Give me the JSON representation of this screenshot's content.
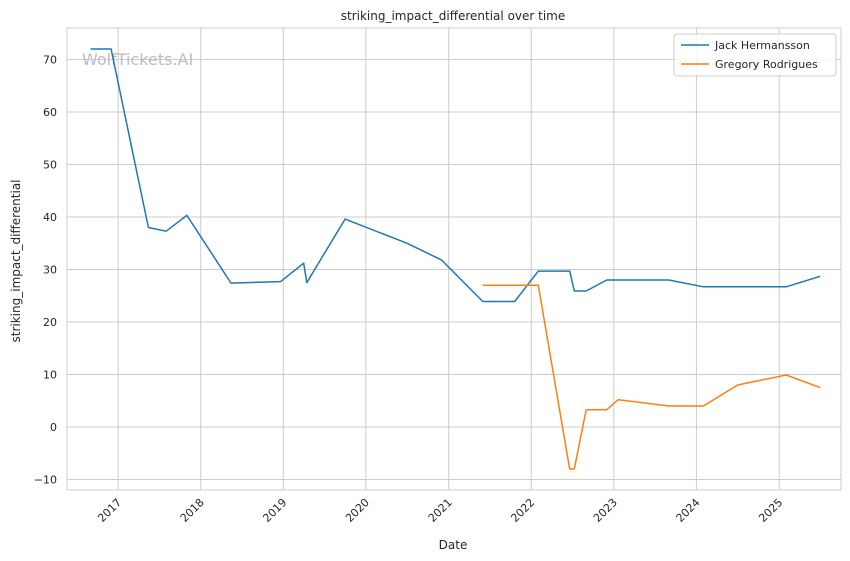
{
  "chart_data": {
    "type": "line",
    "title": "striking_impact_differential over time",
    "xlabel": "Date",
    "ylabel": "striking_impact_differential",
    "watermark": "WolfTickets.AI",
    "x_ticks": [
      "2017",
      "2018",
      "2019",
      "2020",
      "2021",
      "2022",
      "2023",
      "2024",
      "2025"
    ],
    "y_ticks": [
      -10,
      0,
      10,
      20,
      30,
      40,
      50,
      60,
      70
    ],
    "xlim": [
      "2016-05-20",
      "2025-10-01"
    ],
    "ylim": [
      -12,
      76
    ],
    "grid": true,
    "legend_position": "top-right",
    "series": [
      {
        "name": "Jack Hermansson",
        "color": "#1f77b4",
        "points": [
          [
            "2016-09-01",
            72
          ],
          [
            "2016-12-01",
            72
          ],
          [
            "2017-05-15",
            38
          ],
          [
            "2017-08-01",
            37.3
          ],
          [
            "2017-11-01",
            40.3
          ],
          [
            "2018-05-15",
            27.4
          ],
          [
            "2018-12-20",
            27.7
          ],
          [
            "2019-04-01",
            31.2
          ],
          [
            "2019-04-15",
            27.5
          ],
          [
            "2019-10-01",
            39.6
          ],
          [
            "2020-07-01",
            35
          ],
          [
            "2020-12-01",
            31.8
          ],
          [
            "2021-06-01",
            23.9
          ],
          [
            "2021-10-20",
            23.9
          ],
          [
            "2022-02-01",
            29.7
          ],
          [
            "2022-06-20",
            29.7
          ],
          [
            "2022-07-10",
            25.9
          ],
          [
            "2022-09-01",
            25.9
          ],
          [
            "2022-12-01",
            28
          ],
          [
            "2023-09-01",
            28
          ],
          [
            "2024-02-01",
            26.7
          ],
          [
            "2025-02-01",
            26.7
          ],
          [
            "2025-07-01",
            28.7
          ]
        ]
      },
      {
        "name": "Gregory Rodrigues",
        "color": "#ff7f0e",
        "points": [
          [
            "2021-06-01",
            27
          ],
          [
            "2022-02-01",
            27
          ],
          [
            "2022-06-20",
            -8
          ],
          [
            "2022-07-10",
            -8
          ],
          [
            "2022-09-01",
            3.3
          ],
          [
            "2022-12-01",
            3.3
          ],
          [
            "2023-01-20",
            5.2
          ],
          [
            "2023-09-01",
            4
          ],
          [
            "2024-02-01",
            4
          ],
          [
            "2024-07-01",
            8
          ],
          [
            "2025-02-01",
            9.9
          ],
          [
            "2025-07-01",
            7.5
          ]
        ]
      }
    ]
  }
}
